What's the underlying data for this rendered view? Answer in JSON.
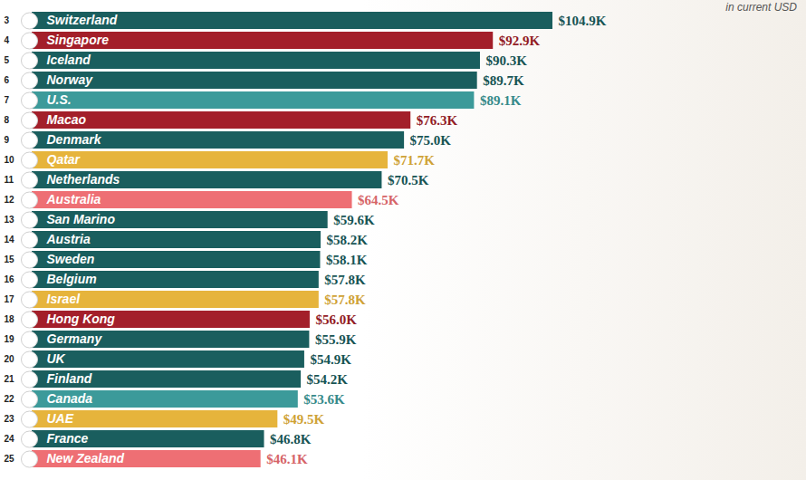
{
  "chart_data": {
    "type": "bar",
    "orientation": "horizontal",
    "subtitle": "in current USD",
    "data_labels": true,
    "tick_labels": false,
    "ranks": [
      3,
      4,
      5,
      6,
      7,
      8,
      9,
      10,
      11,
      12,
      13,
      14,
      15,
      16,
      17,
      18,
      19,
      20,
      21,
      22,
      23,
      24,
      25
    ],
    "categories": [
      "Switzerland",
      "Singapore",
      "Iceland",
      "Norway",
      "U.S.",
      "Macao",
      "Denmark",
      "Qatar",
      "Netherlands",
      "Australia",
      "San Marino",
      "Austria",
      "Sweden",
      "Belgium",
      "Israel",
      "Hong Kong",
      "Germany",
      "UK",
      "Finland",
      "Canada",
      "UAE",
      "France",
      "New Zealand"
    ],
    "values": [
      104.9,
      92.9,
      90.3,
      89.7,
      89.1,
      76.3,
      75.0,
      71.7,
      70.5,
      64.5,
      59.6,
      58.2,
      58.1,
      57.8,
      57.8,
      56.0,
      55.9,
      54.9,
      54.2,
      53.6,
      49.5,
      46.8,
      46.1
    ],
    "value_labels": [
      "$104.9K",
      "$92.9K",
      "$90.3K",
      "$89.7K",
      "$89.1K",
      "$76.3K",
      "$75.0K",
      "$71.7K",
      "$70.5K",
      "$64.5K",
      "$59.6K",
      "$58.2K",
      "$58.1K",
      "$57.8K",
      "$57.8K",
      "$56.0K",
      "$55.9K",
      "$54.9K",
      "$54.2K",
      "$53.6K",
      "$49.5K",
      "$46.8K",
      "$46.1K"
    ],
    "colors": [
      "#1a5e5e",
      "#a31f2a",
      "#1a5e5e",
      "#1a5e5e",
      "#3c9a9a",
      "#a31f2a",
      "#1a5e5e",
      "#e6b43c",
      "#1a5e5e",
      "#ee6f74",
      "#1a5e5e",
      "#1a5e5e",
      "#1a5e5e",
      "#1a5e5e",
      "#e6b43c",
      "#a31f2a",
      "#1a5e5e",
      "#1a5e5e",
      "#1a5e5e",
      "#3c9a9a",
      "#e6b43c",
      "#1a5e5e",
      "#ee6f74"
    ]
  }
}
